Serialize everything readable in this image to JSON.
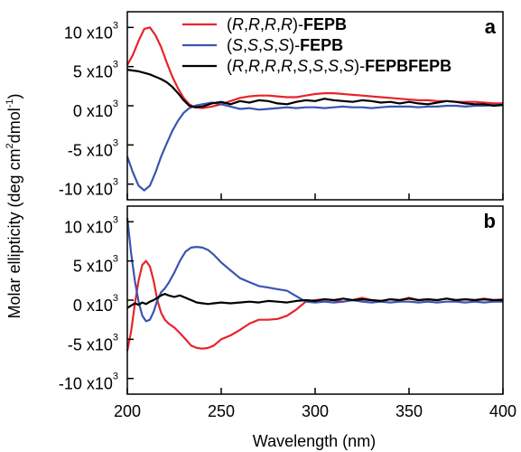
{
  "chart_data": [
    {
      "type": "line",
      "panel_label": "a",
      "xlim": [
        200,
        400
      ],
      "ylim": [
        -12000,
        12000
      ],
      "y_ticks": [
        {
          "value": 10000,
          "label": "10 x10",
          "exp": "3"
        },
        {
          "value": 5000,
          "label": "5 x10",
          "exp": "3"
        },
        {
          "value": 0,
          "label": "0 x10",
          "exp": "3"
        },
        {
          "value": -5000,
          "label": "-5 x10",
          "exp": "3"
        },
        {
          "value": -10000,
          "label": "-10 x10",
          "exp": "3"
        }
      ],
      "legend_position": "top-right",
      "series": [
        {
          "name": "(R,R,R,R)-FEPB",
          "legend_parts": [
            {
              "t": "(",
              "s": ""
            },
            {
              "t": "R",
              "s": "i"
            },
            {
              "t": ",",
              "s": ""
            },
            {
              "t": "R",
              "s": "i"
            },
            {
              "t": ",",
              "s": ""
            },
            {
              "t": "R",
              "s": "i"
            },
            {
              "t": ",",
              "s": ""
            },
            {
              "t": "R",
              "s": "i"
            },
            {
              "t": ")-",
              "s": ""
            },
            {
              "t": "FEPB",
              "s": "b"
            }
          ],
          "color": "#e8242b",
          "x": [
            200,
            203,
            206,
            209,
            212,
            215,
            218,
            221,
            224,
            227,
            230,
            233,
            236,
            240,
            245,
            250,
            255,
            260,
            265,
            270,
            275,
            280,
            285,
            290,
            295,
            300,
            305,
            310,
            315,
            320,
            325,
            330,
            335,
            340,
            345,
            350,
            355,
            360,
            365,
            370,
            375,
            380,
            385,
            390,
            395,
            400
          ],
          "y": [
            5200,
            6500,
            8300,
            9800,
            10000,
            9000,
            7500,
            5500,
            3700,
            2200,
            1000,
            200,
            -200,
            -300,
            -100,
            200,
            600,
            1000,
            1200,
            1300,
            1300,
            1200,
            1100,
            1100,
            1300,
            1500,
            1600,
            1600,
            1500,
            1400,
            1300,
            1200,
            1100,
            1000,
            900,
            800,
            700,
            700,
            600,
            600,
            500,
            500,
            500,
            400,
            300,
            300
          ]
        },
        {
          "name": "(S,S,S,S)-FEPB",
          "legend_parts": [
            {
              "t": "(",
              "s": ""
            },
            {
              "t": "S",
              "s": "i"
            },
            {
              "t": ",",
              "s": ""
            },
            {
              "t": "S",
              "s": "i"
            },
            {
              "t": ",",
              "s": ""
            },
            {
              "t": "S",
              "s": "i"
            },
            {
              "t": ",",
              "s": ""
            },
            {
              "t": "S",
              "s": "i"
            },
            {
              "t": ")-",
              "s": ""
            },
            {
              "t": "FEPB",
              "s": "b"
            }
          ],
          "color": "#3b55b0",
          "x": [
            200,
            203,
            206,
            209,
            212,
            215,
            218,
            221,
            224,
            227,
            230,
            233,
            236,
            240,
            245,
            250,
            255,
            260,
            265,
            270,
            275,
            280,
            285,
            290,
            295,
            300,
            305,
            310,
            315,
            320,
            325,
            330,
            335,
            340,
            345,
            350,
            355,
            360,
            365,
            370,
            375,
            380,
            385,
            390,
            395,
            400
          ],
          "y": [
            -6500,
            -8500,
            -10200,
            -10800,
            -10200,
            -8500,
            -6500,
            -4800,
            -3200,
            -1900,
            -900,
            -300,
            0,
            200,
            400,
            200,
            -100,
            -400,
            -300,
            -500,
            -400,
            -300,
            -200,
            -300,
            -200,
            -200,
            -300,
            -200,
            -100,
            -200,
            -200,
            -300,
            -200,
            -100,
            -100,
            -100,
            -200,
            -100,
            -100,
            0,
            0,
            -100,
            0,
            0,
            100,
            100
          ]
        },
        {
          "name": "(R,R,R,R,S,S,S,S)-FEPBFEPB",
          "legend_parts": [
            {
              "t": "(",
              "s": ""
            },
            {
              "t": "R",
              "s": "i"
            },
            {
              "t": ",",
              "s": ""
            },
            {
              "t": "R",
              "s": "i"
            },
            {
              "t": ",",
              "s": ""
            },
            {
              "t": "R",
              "s": "i"
            },
            {
              "t": ",",
              "s": ""
            },
            {
              "t": "R",
              "s": "i"
            },
            {
              "t": ",",
              "s": ""
            },
            {
              "t": "S",
              "s": "i"
            },
            {
              "t": ",",
              "s": ""
            },
            {
              "t": "S",
              "s": "i"
            },
            {
              "t": ",",
              "s": ""
            },
            {
              "t": "S",
              "s": "i"
            },
            {
              "t": ",",
              "s": ""
            },
            {
              "t": "S",
              "s": "i"
            },
            {
              "t": ")-",
              "s": ""
            },
            {
              "t": "FEPBFEPB",
              "s": "b"
            }
          ],
          "color": "#000000",
          "x": [
            200,
            203,
            206,
            209,
            212,
            215,
            218,
            221,
            224,
            227,
            230,
            233,
            236,
            240,
            245,
            250,
            255,
            260,
            265,
            270,
            275,
            280,
            285,
            290,
            295,
            300,
            305,
            310,
            315,
            320,
            325,
            330,
            335,
            340,
            345,
            350,
            355,
            360,
            365,
            370,
            375,
            380,
            385,
            390,
            395,
            400
          ],
          "y": [
            4600,
            4500,
            4400,
            4200,
            4000,
            3700,
            3400,
            3000,
            2400,
            1600,
            700,
            0,
            -200,
            -100,
            300,
            500,
            200,
            600,
            400,
            700,
            600,
            300,
            200,
            500,
            700,
            600,
            900,
            700,
            600,
            500,
            700,
            600,
            400,
            500,
            300,
            500,
            300,
            200,
            400,
            600,
            500,
            300,
            200,
            200,
            0,
            100
          ]
        }
      ]
    },
    {
      "type": "line",
      "panel_label": "b",
      "xlim": [
        200,
        400
      ],
      "ylim": [
        -12000,
        12000
      ],
      "y_ticks": [
        {
          "value": 10000,
          "label": "10 x10",
          "exp": "3"
        },
        {
          "value": 5000,
          "label": "5 x10",
          "exp": "3"
        },
        {
          "value": 0,
          "label": "0 x10",
          "exp": "3"
        },
        {
          "value": -5000,
          "label": "-5 x10",
          "exp": "3"
        },
        {
          "value": -10000,
          "label": "-10 x10",
          "exp": "3"
        }
      ],
      "x_ticks": [
        200,
        250,
        300,
        350,
        400
      ],
      "series": [
        {
          "name": "(R,R,R,R)-FEPB",
          "color": "#e8242b",
          "x": [
            200,
            202,
            204,
            206,
            208,
            210,
            212,
            214,
            216,
            218,
            220,
            222,
            225,
            228,
            231,
            234,
            237,
            240,
            243,
            246,
            250,
            255,
            260,
            265,
            270,
            275,
            280,
            285,
            290,
            295,
            300,
            305,
            310,
            315,
            320,
            325,
            330,
            335,
            340,
            345,
            350,
            355,
            360,
            365,
            370,
            375,
            380,
            385,
            390,
            395,
            400
          ],
          "y": [
            -6500,
            -4000,
            -500,
            2500,
            4500,
            5000,
            4300,
            2500,
            0,
            -1600,
            -2500,
            -3000,
            -3500,
            -4200,
            -5000,
            -5800,
            -6100,
            -6200,
            -6100,
            -5800,
            -5000,
            -4500,
            -3800,
            -3000,
            -2500,
            -2500,
            -2400,
            -2000,
            -1200,
            -200,
            0,
            100,
            0,
            -200,
            0,
            300,
            0,
            -100,
            100,
            0,
            300,
            0,
            100,
            0,
            200,
            0,
            100,
            0,
            200,
            0,
            100
          ]
        },
        {
          "name": "(S,S,S,S)-FEPB",
          "color": "#3b55b0",
          "x": [
            200,
            202,
            204,
            206,
            208,
            210,
            212,
            214,
            216,
            218,
            220,
            222,
            225,
            228,
            231,
            234,
            237,
            240,
            243,
            246,
            250,
            255,
            260,
            265,
            270,
            275,
            280,
            285,
            290,
            295,
            300,
            305,
            310,
            315,
            320,
            325,
            330,
            335,
            340,
            345,
            350,
            355,
            360,
            365,
            370,
            375,
            380,
            385,
            390,
            395,
            400
          ],
          "y": [
            10500,
            6000,
            2500,
            -200,
            -2000,
            -2700,
            -2500,
            -1500,
            0,
            1000,
            1500,
            2200,
            3500,
            5000,
            6200,
            6700,
            6800,
            6700,
            6400,
            5800,
            4800,
            3800,
            2800,
            2300,
            1800,
            1600,
            1400,
            1200,
            500,
            -200,
            -300,
            -200,
            -300,
            -200,
            0,
            -200,
            -300,
            -200,
            -300,
            -200,
            -200,
            -300,
            -200,
            -300,
            -200,
            -200,
            -300,
            -200,
            -300,
            -200,
            -200
          ]
        },
        {
          "name": "(R,R,R,R,S,S,S,S)-FEPBFEPB",
          "color": "#000000",
          "x": [
            200,
            202,
            204,
            206,
            208,
            210,
            212,
            214,
            216,
            218,
            220,
            222,
            225,
            228,
            231,
            234,
            237,
            240,
            243,
            246,
            250,
            255,
            260,
            265,
            270,
            275,
            280,
            285,
            290,
            295,
            300,
            305,
            310,
            315,
            320,
            325,
            330,
            335,
            340,
            345,
            350,
            355,
            360,
            365,
            370,
            375,
            380,
            385,
            390,
            395,
            400
          ],
          "y": [
            -1000,
            -700,
            -400,
            -600,
            -300,
            -500,
            -200,
            0,
            300,
            600,
            800,
            600,
            400,
            600,
            300,
            0,
            -300,
            -400,
            -500,
            -400,
            -300,
            -400,
            -300,
            -200,
            -300,
            -100,
            -200,
            -300,
            -100,
            0,
            -100,
            100,
            0,
            200,
            0,
            100,
            0,
            -100,
            100,
            0,
            200,
            0,
            100,
            0,
            200,
            0,
            100,
            0,
            100,
            0,
            0
          ]
        }
      ]
    }
  ],
  "axis": {
    "xlabel": "Wavelength (nm)",
    "ylabel_parts": {
      "pre": "Molar ellipticity (deg cm",
      "sup1": "2",
      "mid": "dmol",
      "sup2": "-1",
      "post": ")"
    }
  }
}
